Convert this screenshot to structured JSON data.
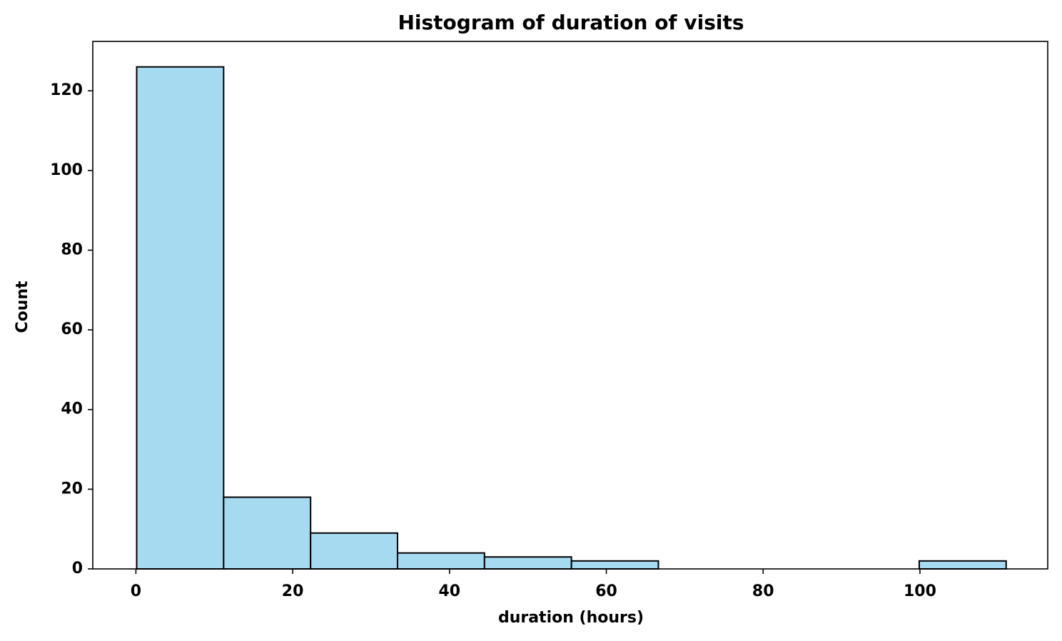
{
  "chart_data": {
    "type": "histogram",
    "title": "Histogram of duration of visits",
    "x_label": "duration (hours)",
    "y_label": "Count",
    "bins": [
      0.1,
      11.19,
      22.28,
      33.37,
      44.46,
      55.55,
      66.64,
      77.73,
      88.82,
      99.91,
      111.0
    ],
    "values": [
      126,
      18,
      9,
      4,
      3,
      2,
      0,
      0,
      0,
      2
    ],
    "color": "#a6daf0",
    "edgecolor": "#000000",
    "xlim": [
      -5.5,
      116.3
    ],
    "xticks": [
      0,
      20,
      40,
      60,
      80,
      100
    ],
    "ylim": [
      0,
      132.4
    ],
    "yticks": [
      0,
      20,
      40,
      60,
      80,
      100,
      120
    ]
  }
}
